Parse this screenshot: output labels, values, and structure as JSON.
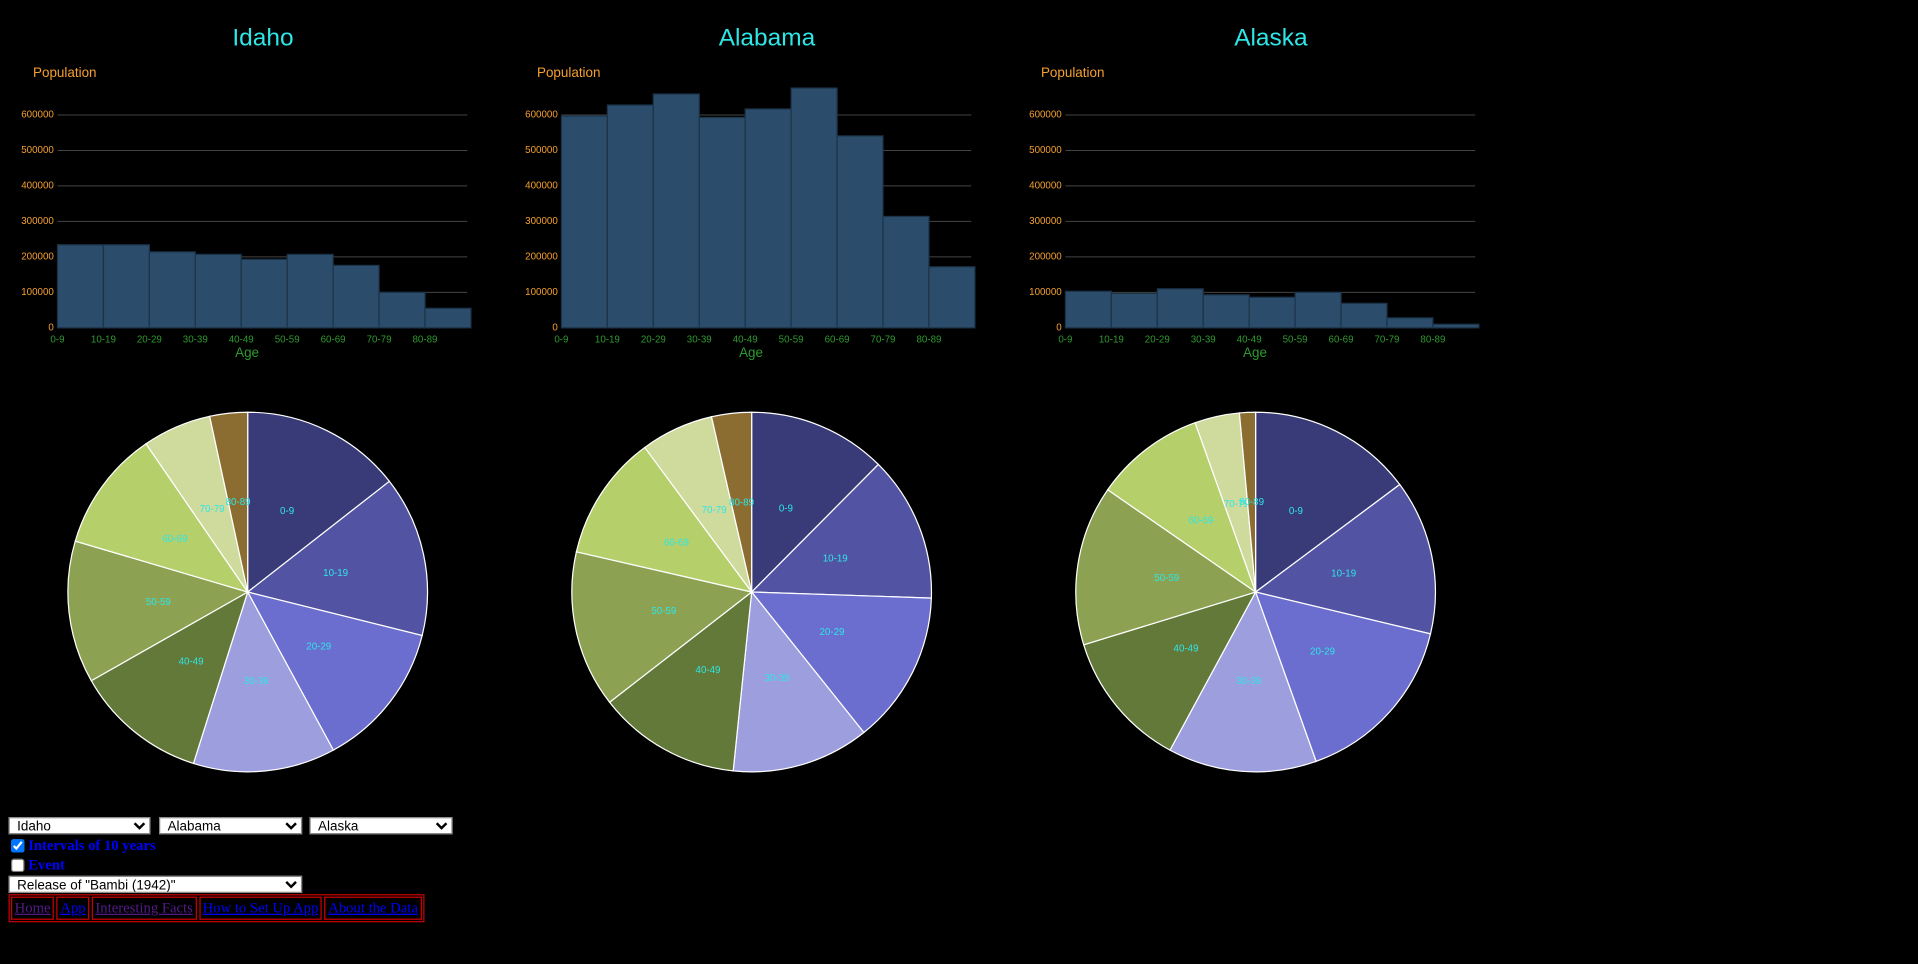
{
  "chart_data": [
    {
      "type": "bar",
      "title": "Idaho",
      "ylabel": "Population",
      "xlabel": "Age",
      "categories": [
        "0-9",
        "10-19",
        "20-29",
        "30-39",
        "40-49",
        "50-59",
        "60-69",
        "70-79",
        "80-89"
      ],
      "values": [
        234000,
        234000,
        214000,
        207000,
        193000,
        207000,
        176000,
        100000,
        55000
      ],
      "color": "#2b4c6a",
      "ylim": [
        0,
        700000
      ],
      "yticks": [
        0,
        100000,
        200000,
        300000,
        400000,
        500000,
        600000
      ],
      "grid": true
    },
    {
      "type": "bar",
      "title": "Alabama",
      "ylabel": "Population",
      "xlabel": "Age",
      "categories": [
        "0-9",
        "10-19",
        "20-29",
        "30-39",
        "40-49",
        "50-59",
        "60-69",
        "70-79",
        "80-89"
      ],
      "values": [
        597000,
        628000,
        659000,
        593000,
        617000,
        676000,
        541000,
        314000,
        172000
      ],
      "color": "#2b4c6a",
      "ylim": [
        0,
        700000
      ],
      "yticks": [
        0,
        100000,
        200000,
        300000,
        400000,
        500000,
        600000
      ],
      "grid": true
    },
    {
      "type": "bar",
      "title": "Alaska",
      "ylabel": "Population",
      "xlabel": "Age",
      "categories": [
        "0-9",
        "10-19",
        "20-29",
        "30-39",
        "40-49",
        "50-59",
        "60-69",
        "70-79",
        "80-89"
      ],
      "values": [
        103000,
        97000,
        110000,
        93000,
        86000,
        100000,
        69000,
        28000,
        10000
      ],
      "color": "#2b4c6a",
      "ylim": [
        0,
        700000
      ],
      "yticks": [
        0,
        100000,
        200000,
        300000,
        400000,
        500000,
        600000
      ],
      "grid": true
    },
    {
      "type": "pie",
      "categories": [
        "0-9",
        "10-19",
        "20-29",
        "30-39",
        "40-49",
        "50-59",
        "60-69",
        "70-79",
        "80-89"
      ],
      "values": [
        234000,
        234000,
        214000,
        207000,
        193000,
        207000,
        176000,
        100000,
        55000
      ],
      "colors": [
        "#393b79",
        "#5254a3",
        "#6b6ecf",
        "#9c9ede",
        "#637939",
        "#8ca252",
        "#b5cf6b",
        "#cedb9c",
        "#8c6d31"
      ]
    },
    {
      "type": "pie",
      "categories": [
        "0-9",
        "10-19",
        "20-29",
        "30-39",
        "40-49",
        "50-59",
        "60-69",
        "70-79",
        "80-89"
      ],
      "values": [
        597000,
        628000,
        659000,
        593000,
        617000,
        676000,
        541000,
        314000,
        172000
      ],
      "colors": [
        "#393b79",
        "#5254a3",
        "#6b6ecf",
        "#9c9ede",
        "#637939",
        "#8ca252",
        "#b5cf6b",
        "#cedb9c",
        "#8c6d31"
      ]
    },
    {
      "type": "pie",
      "categories": [
        "0-9",
        "10-19",
        "20-29",
        "30-39",
        "40-49",
        "50-59",
        "60-69",
        "70-79",
        "80-89"
      ],
      "values": [
        103000,
        97000,
        110000,
        93000,
        86000,
        100000,
        69000,
        28000,
        10000
      ],
      "colors": [
        "#393b79",
        "#5254a3",
        "#6b6ecf",
        "#9c9ede",
        "#637939",
        "#8ca252",
        "#b5cf6b",
        "#cedb9c",
        "#8c6d31"
      ]
    }
  ],
  "controls": {
    "state_selects": [
      "Idaho",
      "Alabama",
      "Alaska"
    ],
    "intervals_label": "Intervals of 10 years",
    "intervals_checked": true,
    "event_label": "Event",
    "event_checked": false,
    "event_select": "Release of \"Bambi (1942)\"",
    "nav": [
      "Home",
      "App",
      "Interesting Facts",
      "How to Set Up App",
      "About the Data"
    ]
  }
}
